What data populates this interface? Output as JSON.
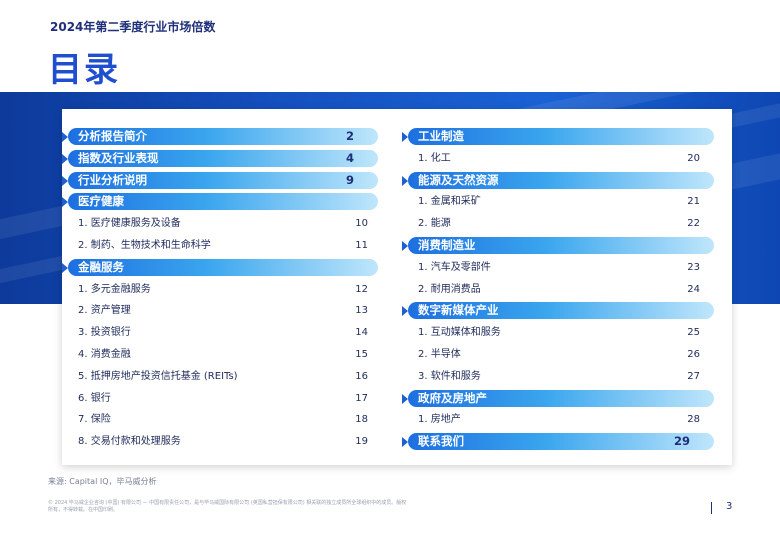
{
  "header": {
    "subtitle": "2024年第二季度行业市场倍数",
    "title": "目录"
  },
  "toc": {
    "left": [
      {
        "type": "section",
        "label": "分析报告简介",
        "page": "2"
      },
      {
        "type": "section",
        "label": "指数及行业表现",
        "page": "4"
      },
      {
        "type": "section",
        "label": "行业分析说明",
        "page": "9"
      },
      {
        "type": "section",
        "label": "医疗健康",
        "page": ""
      },
      {
        "type": "item",
        "label": "1. 医疗健康服务及设备",
        "page": "10"
      },
      {
        "type": "item",
        "label": "2. 制药、生物技术和生命科学",
        "page": "11"
      },
      {
        "type": "section",
        "label": "金融服务",
        "page": ""
      },
      {
        "type": "item",
        "label": "1. 多元金融服务",
        "page": "12"
      },
      {
        "type": "item",
        "label": "2. 资产管理",
        "page": "13"
      },
      {
        "type": "item",
        "label": "3. 投资银行",
        "page": "14"
      },
      {
        "type": "item",
        "label": "4. 消费金融",
        "page": "15"
      },
      {
        "type": "item",
        "label": "5. 抵押房地产投资信托基金 (REITs)",
        "page": "16"
      },
      {
        "type": "item",
        "label": "6. 银行",
        "page": "17"
      },
      {
        "type": "item",
        "label": "7. 保险",
        "page": "18"
      },
      {
        "type": "item",
        "label": "8. 交易付款和处理服务",
        "page": "19"
      }
    ],
    "right": [
      {
        "type": "section",
        "label": "工业制造",
        "page": ""
      },
      {
        "type": "item",
        "label": "1. 化工",
        "page": "20"
      },
      {
        "type": "section",
        "label": "能源及天然资源",
        "page": ""
      },
      {
        "type": "item",
        "label": "1. 金属和采矿",
        "page": "21"
      },
      {
        "type": "item",
        "label": "2. 能源",
        "page": "22"
      },
      {
        "type": "section",
        "label": "消费制造业",
        "page": ""
      },
      {
        "type": "item",
        "label": "1. 汽车及零部件",
        "page": "23"
      },
      {
        "type": "item",
        "label": "2. 耐用消费品",
        "page": "24"
      },
      {
        "type": "section",
        "label": "数字新媒体产业",
        "page": ""
      },
      {
        "type": "item",
        "label": "1. 互动媒体和服务",
        "page": "25"
      },
      {
        "type": "item",
        "label": "2. 半导体",
        "page": "26"
      },
      {
        "type": "item",
        "label": "3. 软件和服务",
        "page": "27"
      },
      {
        "type": "section",
        "label": "政府及房地产",
        "page": ""
      },
      {
        "type": "item",
        "label": "1. 房地产",
        "page": "28"
      },
      {
        "type": "section",
        "label": "联系我们",
        "page": "29"
      }
    ]
  },
  "footer": {
    "source": "来源: Capital IQ，毕马威分析",
    "copyright": "© 2024 毕马威企业咨询 (中国) 有限公司 — 中国有限责任公司，是与毕马威国际有限公司 (英国私营担保有限公司) 相关联的独立成员所全球组织中的成员。版权所有，不得转载。在中国印刷。",
    "page_number": "3"
  },
  "colors": {
    "title_blue": "#1f4fcf",
    "navy": "#1f2f78",
    "banner_blue": "#1552c2",
    "pill_start": "#1d6fe0",
    "pill_end": "#bfe6fb"
  }
}
